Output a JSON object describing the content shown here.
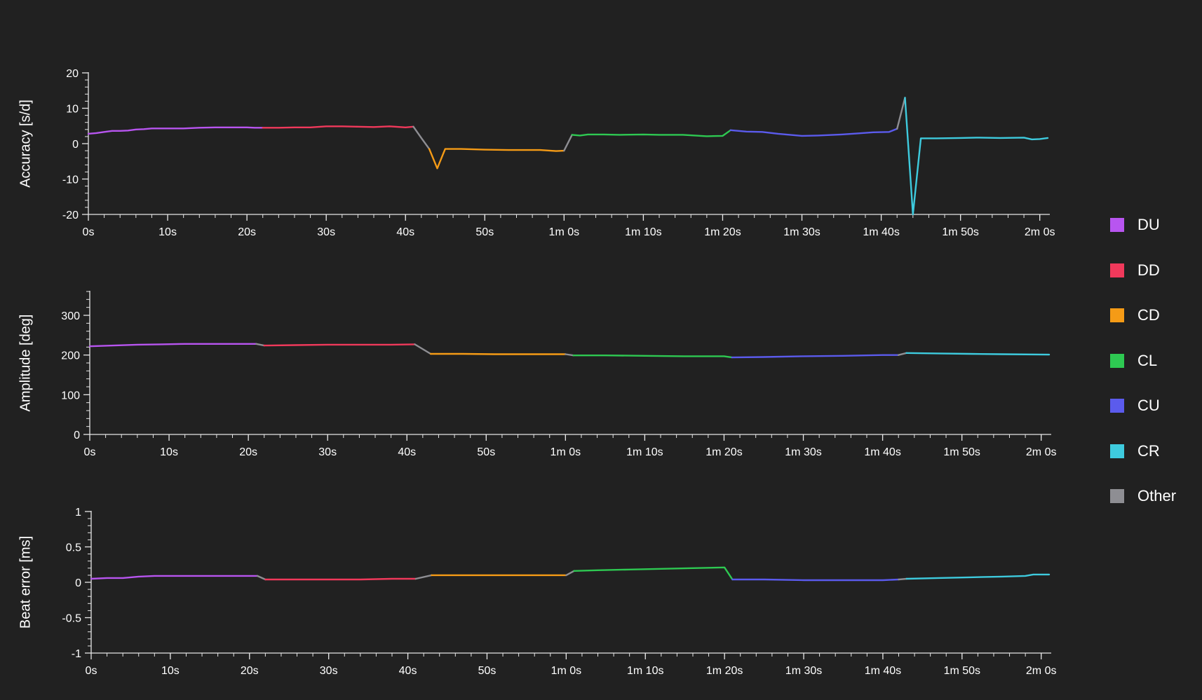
{
  "legend": {
    "items": [
      {
        "label": "DU",
        "color": "#b855f0"
      },
      {
        "label": "DD",
        "color": "#f0395b"
      },
      {
        "label": "CD",
        "color": "#f59b16"
      },
      {
        "label": "CL",
        "color": "#2ec952"
      },
      {
        "label": "CU",
        "color": "#5b5bed"
      },
      {
        "label": "CR",
        "color": "#3ecbde"
      },
      {
        "label": "Other",
        "color": "#8e8e93"
      }
    ]
  },
  "chart_data": [
    {
      "type": "line",
      "ylabel": "Accuracy [s/d]",
      "xlabel": "",
      "ylim": [
        -20,
        20
      ],
      "xlim": [
        0,
        121
      ],
      "yticks": [
        -20,
        -10,
        0,
        10,
        20
      ],
      "yticklabels": [
        "-20",
        "-10",
        "0",
        "10",
        "20"
      ],
      "xticks": [
        0,
        10,
        20,
        30,
        40,
        50,
        60,
        70,
        80,
        90,
        100,
        110,
        120
      ],
      "xticklabels": [
        "0s",
        "10s",
        "20s",
        "30s",
        "40s",
        "50s",
        "1m 0s",
        "1m 10s",
        "1m 20s",
        "1m 30s",
        "1m 40s",
        "1m 50s",
        "2m 0s"
      ],
      "series": [
        {
          "name": "DU",
          "x": [
            0,
            1,
            2,
            3,
            4,
            5,
            6,
            7,
            8,
            9,
            10,
            12,
            14,
            16,
            18,
            20,
            21,
            22
          ],
          "y": [
            2.8,
            3,
            3.3,
            3.6,
            3.6,
            3.7,
            4,
            4.1,
            4.3,
            4.3,
            4.3,
            4.3,
            4.5,
            4.6,
            4.6,
            4.6,
            4.5,
            4.5
          ]
        },
        {
          "name": "DD",
          "x": [
            22,
            24,
            26,
            28,
            30,
            32,
            34,
            36,
            38,
            40,
            41
          ],
          "y": [
            4.5,
            4.5,
            4.6,
            4.6,
            4.9,
            4.9,
            4.8,
            4.7,
            4.9,
            4.6,
            4.8
          ]
        },
        {
          "name": "Other",
          "x": [
            41,
            42,
            43
          ],
          "y": [
            4.8,
            1.6,
            -1.5
          ]
        },
        {
          "name": "CD",
          "x": [
            43,
            44,
            45,
            47,
            50,
            53,
            55,
            57,
            59,
            60
          ],
          "y": [
            -1.5,
            -7,
            -1.5,
            -1.5,
            -1.7,
            -1.8,
            -1.8,
            -1.8,
            -2.1,
            -2
          ]
        },
        {
          "name": "Other",
          "x": [
            60,
            61
          ],
          "y": [
            -2,
            2.5
          ]
        },
        {
          "name": "CL",
          "x": [
            61,
            62,
            63,
            65,
            67,
            70,
            72,
            75,
            78,
            80,
            81
          ],
          "y": [
            2.5,
            2.3,
            2.6,
            2.6,
            2.5,
            2.6,
            2.5,
            2.5,
            2.1,
            2.2,
            3.8
          ]
        },
        {
          "name": "CU",
          "x": [
            81,
            83,
            85,
            87,
            90,
            92,
            95,
            97,
            99,
            101,
            102
          ],
          "y": [
            3.8,
            3.4,
            3.3,
            2.8,
            2.2,
            2.3,
            2.6,
            2.9,
            3.2,
            3.3,
            4.2
          ]
        },
        {
          "name": "Other",
          "x": [
            102,
            103
          ],
          "y": [
            4.2,
            13
          ]
        },
        {
          "name": "CR",
          "x": [
            103,
            104,
            105,
            107,
            110,
            112,
            115,
            118,
            119,
            120,
            121
          ],
          "y": [
            13,
            -20,
            1.5,
            1.5,
            1.6,
            1.7,
            1.6,
            1.7,
            1.2,
            1.3,
            1.6
          ]
        }
      ]
    },
    {
      "type": "line",
      "ylabel": "Amplitude [deg]",
      "xlabel": "",
      "ylim": [
        0,
        360
      ],
      "xlim": [
        0,
        121
      ],
      "yticks": [
        0,
        100,
        200,
        300
      ],
      "yticklabels": [
        "0",
        "100",
        "200",
        "300"
      ],
      "xticks": [
        0,
        10,
        20,
        30,
        40,
        50,
        60,
        70,
        80,
        90,
        100,
        110,
        120
      ],
      "xticklabels": [
        "0s",
        "10s",
        "20s",
        "30s",
        "40s",
        "50s",
        "1m 0s",
        "1m 10s",
        "1m 20s",
        "1m 30s",
        "1m 40s",
        "1m 50s",
        "2m 0s"
      ],
      "series": [
        {
          "name": "DU",
          "x": [
            0,
            3,
            6,
            9,
            12,
            15,
            18,
            21
          ],
          "y": [
            222,
            224,
            226,
            227,
            228,
            228,
            228,
            228
          ]
        },
        {
          "name": "Other",
          "x": [
            21,
            22
          ],
          "y": [
            228,
            224
          ]
        },
        {
          "name": "DD",
          "x": [
            22,
            26,
            30,
            34,
            38,
            41
          ],
          "y": [
            224,
            225,
            226,
            226,
            226,
            227
          ]
        },
        {
          "name": "Other",
          "x": [
            41,
            43
          ],
          "y": [
            227,
            203
          ]
        },
        {
          "name": "CD",
          "x": [
            43,
            47,
            51,
            55,
            60
          ],
          "y": [
            203,
            203,
            202,
            202,
            202
          ]
        },
        {
          "name": "Other",
          "x": [
            60,
            61
          ],
          "y": [
            202,
            199
          ]
        },
        {
          "name": "CL",
          "x": [
            61,
            65,
            70,
            75,
            80,
            81
          ],
          "y": [
            199,
            199,
            198,
            197,
            197,
            194
          ]
        },
        {
          "name": "CU",
          "x": [
            81,
            85,
            90,
            95,
            100,
            102
          ],
          "y": [
            194,
            195,
            197,
            198,
            200,
            200
          ]
        },
        {
          "name": "Other",
          "x": [
            102,
            103
          ],
          "y": [
            200,
            205
          ]
        },
        {
          "name": "CR",
          "x": [
            103,
            107,
            111,
            115,
            121
          ],
          "y": [
            205,
            204,
            203,
            202,
            201
          ]
        }
      ]
    },
    {
      "type": "line",
      "ylabel": "Beat error [ms]",
      "xlabel": "",
      "ylim": [
        -1,
        1
      ],
      "xlim": [
        0,
        121
      ],
      "yticks": [
        -1,
        -0.5,
        0,
        0.5,
        1
      ],
      "yticklabels": [
        "-1",
        "-0.5",
        "0",
        "0.5",
        "1"
      ],
      "xticks": [
        0,
        10,
        20,
        30,
        40,
        50,
        60,
        70,
        80,
        90,
        100,
        110,
        120
      ],
      "xticklabels": [
        "0s",
        "10s",
        "20s",
        "30s",
        "40s",
        "50s",
        "1m 0s",
        "1m 10s",
        "1m 20s",
        "1m 30s",
        "1m 40s",
        "1m 50s",
        "2m 0s"
      ],
      "series": [
        {
          "name": "DU",
          "x": [
            0,
            2,
            4,
            6,
            8,
            12,
            16,
            20,
            21
          ],
          "y": [
            0.05,
            0.06,
            0.06,
            0.08,
            0.09,
            0.09,
            0.09,
            0.09,
            0.09
          ]
        },
        {
          "name": "Other",
          "x": [
            21,
            22
          ],
          "y": [
            0.09,
            0.04
          ]
        },
        {
          "name": "DD",
          "x": [
            22,
            26,
            30,
            34,
            38,
            41
          ],
          "y": [
            0.04,
            0.04,
            0.04,
            0.04,
            0.05,
            0.05
          ]
        },
        {
          "name": "Other",
          "x": [
            41,
            43
          ],
          "y": [
            0.05,
            0.1
          ]
        },
        {
          "name": "CD",
          "x": [
            43,
            47,
            52,
            56,
            60
          ],
          "y": [
            0.1,
            0.1,
            0.1,
            0.1,
            0.1
          ]
        },
        {
          "name": "Other",
          "x": [
            60,
            61
          ],
          "y": [
            0.1,
            0.16
          ]
        },
        {
          "name": "CL",
          "x": [
            61,
            64,
            68,
            72,
            76,
            80,
            81
          ],
          "y": [
            0.16,
            0.17,
            0.18,
            0.19,
            0.2,
            0.21,
            0.04
          ]
        },
        {
          "name": "CU",
          "x": [
            81,
            85,
            90,
            95,
            100,
            102
          ],
          "y": [
            0.04,
            0.04,
            0.03,
            0.03,
            0.03,
            0.04
          ]
        },
        {
          "name": "Other",
          "x": [
            102,
            103
          ],
          "y": [
            0.04,
            0.05
          ]
        },
        {
          "name": "CR",
          "x": [
            103,
            107,
            111,
            115,
            118,
            119,
            121
          ],
          "y": [
            0.05,
            0.06,
            0.07,
            0.08,
            0.09,
            0.11,
            0.11
          ]
        }
      ]
    }
  ]
}
